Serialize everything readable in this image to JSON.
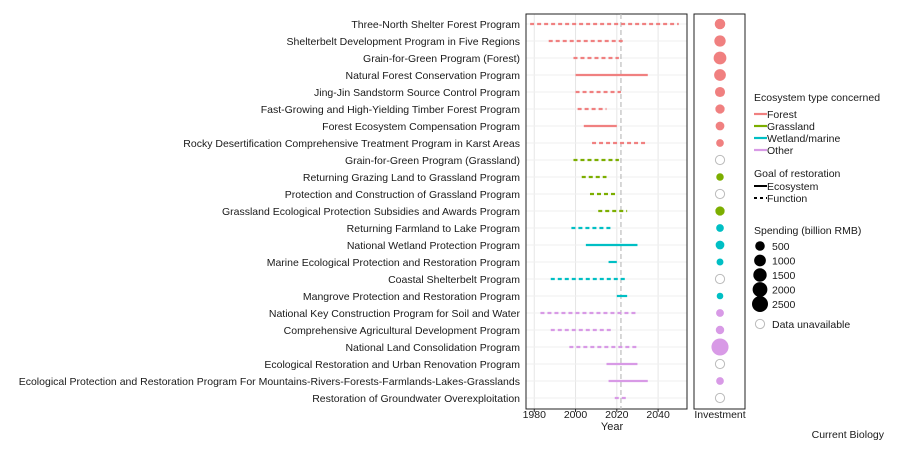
{
  "chart_data": {
    "type": "range-timeline",
    "xlabel": "Year",
    "xlim": [
      1976,
      2054
    ],
    "xticks": [
      1980,
      2000,
      2020,
      2040
    ],
    "reference_year": 2022,
    "investment_panel_label": "Investment",
    "programs": [
      {
        "name": "Three-North Shelter Forest Program",
        "start": 1978,
        "end": 2050,
        "type": "Forest",
        "goal": "Function",
        "spending": 700
      },
      {
        "name": "Shelterbelt Development Program in Five Regions",
        "start": 1987,
        "end": 2023,
        "type": "Forest",
        "goal": "Function",
        "spending": 900
      },
      {
        "name": "Grain-for-Green Program (Forest)",
        "start": 1999,
        "end": 2021,
        "type": "Forest",
        "goal": "Function",
        "spending": 1300
      },
      {
        "name": "Natural Forest Conservation Program",
        "start": 2000,
        "end": 2035,
        "type": "Forest",
        "goal": "Ecosystem",
        "spending": 1000
      },
      {
        "name": "Jing-Jin Sandstorm Source Control Program",
        "start": 2000,
        "end": 2022,
        "type": "Forest",
        "goal": "Function",
        "spending": 600
      },
      {
        "name": "Fast-Growing and High-Yielding Timber Forest Program",
        "start": 2001,
        "end": 2015,
        "type": "Forest",
        "goal": "Function",
        "spending": 450
      },
      {
        "name": "Forest Ecosystem Compensation Program",
        "start": 2004,
        "end": 2020,
        "type": "Forest",
        "goal": "Ecosystem",
        "spending": 350
      },
      {
        "name": "Rocky Desertification Comprehensive Treatment Program in Karst Areas",
        "start": 2008,
        "end": 2035,
        "type": "Forest",
        "goal": "Function",
        "spending": 200
      },
      {
        "name": "Grain-for-Green Program (Grassland)",
        "start": 1999,
        "end": 2021,
        "type": "Grassland",
        "goal": "Function",
        "spending": null
      },
      {
        "name": "Returning Grazing Land to Grassland Program",
        "start": 2003,
        "end": 2015,
        "type": "Grassland",
        "goal": "Function",
        "spending": 180
      },
      {
        "name": "Protection and Construction of Grassland Program",
        "start": 2007,
        "end": 2020,
        "type": "Grassland",
        "goal": "Function",
        "spending": null
      },
      {
        "name": "Grassland Ecological Protection Subsidies and Awards Program",
        "start": 2011,
        "end": 2025,
        "type": "Grassland",
        "goal": "Function",
        "spending": 450
      },
      {
        "name": "Returning Farmland to Lake Program",
        "start": 1998,
        "end": 2018,
        "type": "Wetland/marine",
        "goal": "Function",
        "spending": 200
      },
      {
        "name": "National Wetland Protection Program",
        "start": 2005,
        "end": 2030,
        "type": "Wetland/marine",
        "goal": "Ecosystem",
        "spending": 350
      },
      {
        "name": "Marine Ecological Protection and Restoration Program",
        "start": 2016,
        "end": 2020,
        "type": "Wetland/marine",
        "goal": "Ecosystem",
        "spending": 120
      },
      {
        "name": "Coastal Shelterbelt Program",
        "start": 1988,
        "end": 2025,
        "type": "Wetland/marine",
        "goal": "Function",
        "spending": null
      },
      {
        "name": "Mangrove Protection and Restoration Program",
        "start": 2020,
        "end": 2025,
        "type": "Wetland/marine",
        "goal": "Ecosystem",
        "spending": 90
      },
      {
        "name": "National Key Construction Program for Soil and Water",
        "start": 1983,
        "end": 2030,
        "type": "Other",
        "goal": "Function",
        "spending": 220
      },
      {
        "name": "Comprehensive Agricultural Development Program",
        "start": 1988,
        "end": 2018,
        "type": "Other",
        "goal": "Function",
        "spending": 300
      },
      {
        "name": "National Land Consolidation Program",
        "start": 1997,
        "end": 2030,
        "type": "Other",
        "goal": "Function",
        "spending": 3000
      },
      {
        "name": "Ecological Restoration and Urban Renovation Program",
        "start": 2015,
        "end": 2030,
        "type": "Other",
        "goal": "Ecosystem",
        "spending": null
      },
      {
        "name": "Ecological Protection and Restoration Program For Mountains-Rivers-Forests-Farmlands-Lakes-Grasslands",
        "start": 2016,
        "end": 2035,
        "type": "Other",
        "goal": "Ecosystem",
        "spending": 200
      },
      {
        "name": "Restoration of Groundwater Overexploitation",
        "start": 2019,
        "end": 2025,
        "type": "Other",
        "goal": "Function",
        "spending": null
      }
    ],
    "legend": {
      "placement": "right",
      "type_title": "Ecosystem type concerned",
      "types": [
        {
          "name": "Forest",
          "color": "#F08080"
        },
        {
          "name": "Grassland",
          "color": "#7CAE00"
        },
        {
          "name": "Wetland/marine",
          "color": "#00BFC4"
        },
        {
          "name": "Other",
          "color": "#D89AE6"
        }
      ],
      "goal_title": "Goal of restoration",
      "goals": [
        "Ecosystem",
        "Function"
      ],
      "spending_title": "Spending (billion RMB)",
      "spending_levels": [
        500,
        1000,
        1500,
        2000,
        2500
      ],
      "unavailable_label": "Data unavailable"
    },
    "grid": true
  },
  "credit": "Current Biology"
}
